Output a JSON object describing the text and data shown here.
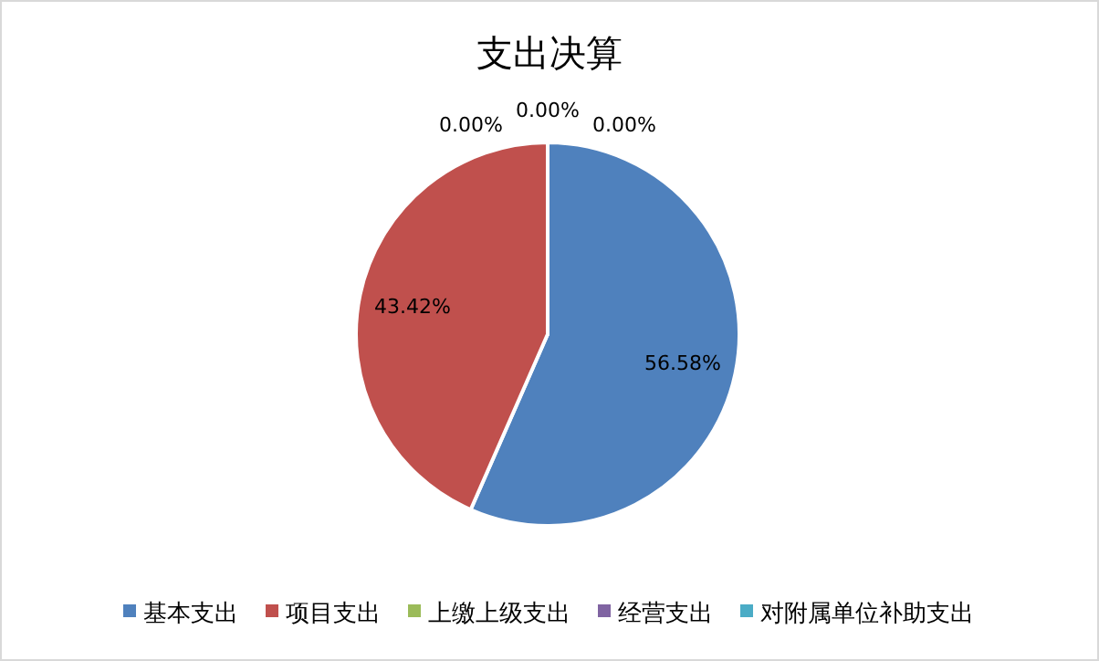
{
  "chart_data": {
    "type": "pie",
    "title": "支出决算",
    "categories": [
      "基本支出",
      "项目支出",
      "上缴上级支出",
      "经营支出",
      "对附属单位补助支出"
    ],
    "values": [
      56.58,
      43.42,
      0,
      0,
      0
    ],
    "colors": [
      "#4f81bd",
      "#c0504d",
      "#9bbb59",
      "#8064a2",
      "#4bacc6"
    ],
    "value_labels": [
      "56.58%",
      "43.42%",
      "0.00%",
      "0.00%",
      "0.00%"
    ],
    "legend": "bottom"
  }
}
